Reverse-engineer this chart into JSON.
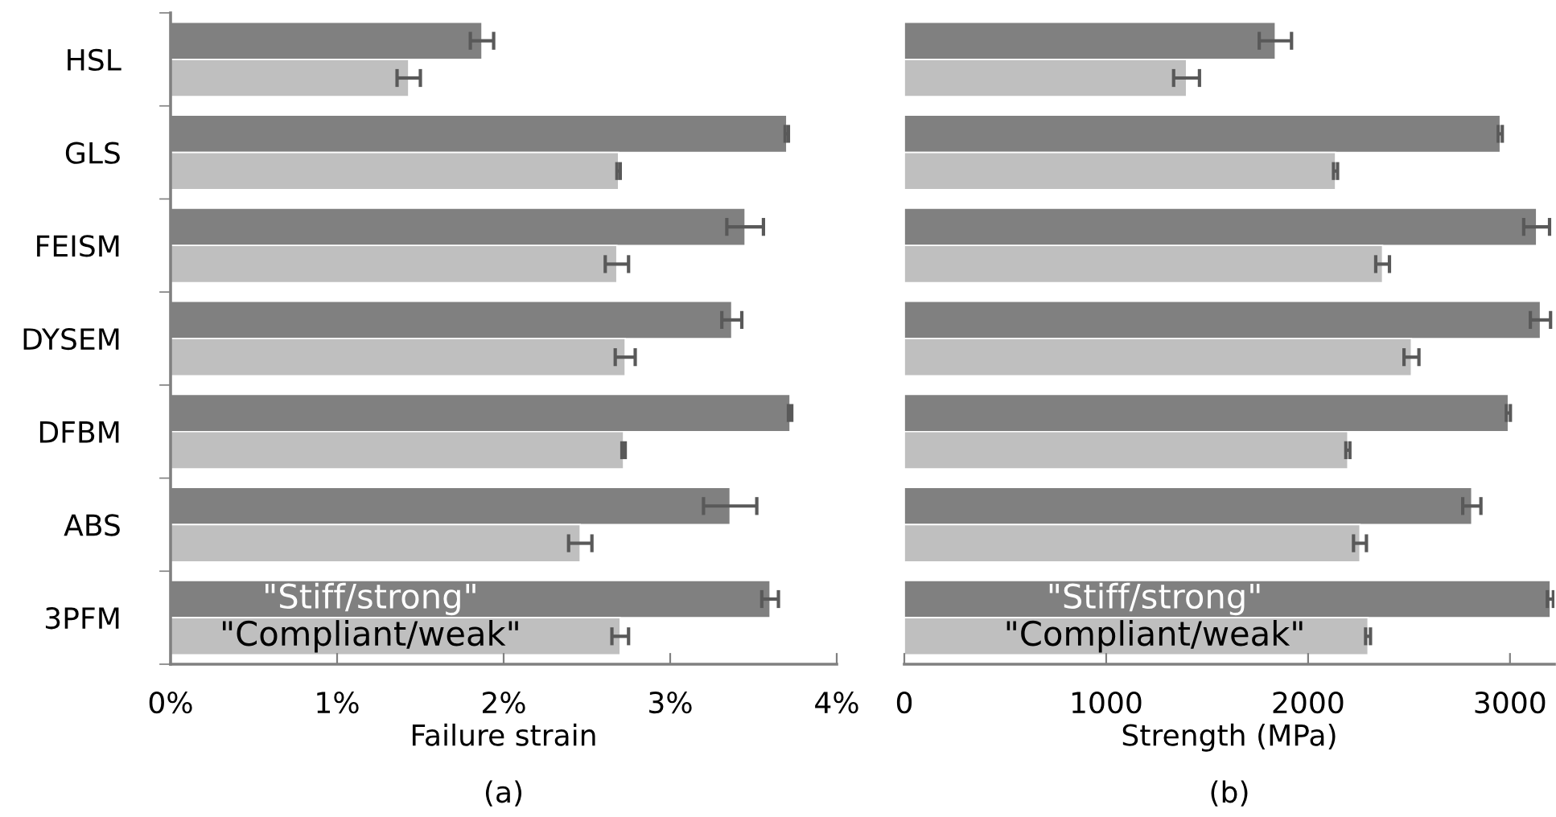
{
  "chart_data": [
    {
      "type": "bar",
      "orientation": "horizontal",
      "categories": [
        "HSL",
        "GLS",
        "FEISM",
        "DYSEM",
        "DFBM",
        "ABS",
        "3PFM"
      ],
      "xlabel": "Failure strain",
      "annotations": [
        "(a)"
      ],
      "series": [
        {
          "name": "\"Stiff/strong\"",
          "color": "#808080",
          "values": [
            1.87,
            3.7,
            3.45,
            3.37,
            3.72,
            3.36,
            3.6
          ],
          "errors": [
            0.07,
            0.01,
            0.11,
            0.06,
            0.01,
            0.16,
            0.05
          ]
        },
        {
          "name": "\"Compliant/weak\"",
          "color": "#bfbfbf",
          "values": [
            1.43,
            2.69,
            2.68,
            2.73,
            2.72,
            2.46,
            2.7
          ],
          "errors": [
            0.07,
            0.01,
            0.07,
            0.06,
            0.01,
            0.07,
            0.05
          ]
        }
      ],
      "xlim": [
        0,
        4
      ],
      "xticks": [
        {
          "value": 0,
          "label": "0%"
        },
        {
          "value": 1,
          "label": "1%"
        },
        {
          "value": 2,
          "label": "2%"
        },
        {
          "value": 3,
          "label": "3%"
        },
        {
          "value": 4,
          "label": "4%"
        }
      ],
      "grid": false,
      "legend": false
    },
    {
      "type": "bar",
      "orientation": "horizontal",
      "categories": [
        null,
        null,
        null,
        null,
        null,
        null,
        null
      ],
      "xlabel": "Strength (MPa)",
      "annotations": [
        "(b)"
      ],
      "series": [
        {
          "name": "\"Stiff/strong\"",
          "color": "#808080",
          "values": [
            1838,
            2952,
            3132,
            3151,
            2992,
            2811,
            3200
          ],
          "errors": [
            80,
            10,
            64,
            50,
            10,
            45,
            15
          ]
        },
        {
          "name": "\"Compliant/weak\"",
          "color": "#bfbfbf",
          "values": [
            1398,
            2136,
            2369,
            2512,
            2197,
            2257,
            2297
          ],
          "errors": [
            64,
            10,
            34,
            37,
            10,
            32,
            12
          ]
        }
      ],
      "xlim": [
        0,
        3220
      ],
      "xticks": [
        0,
        1000,
        2000,
        3000
      ],
      "tick_labels": "x",
      "grid": false,
      "legend": false
    }
  ]
}
